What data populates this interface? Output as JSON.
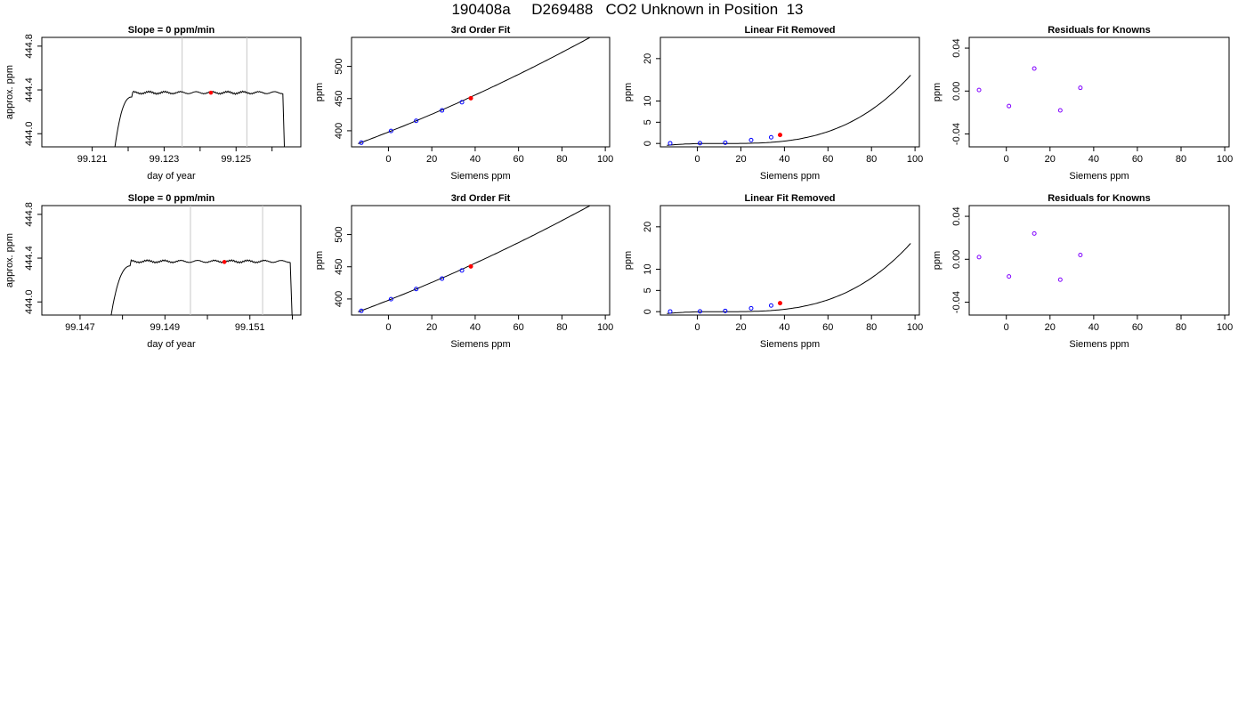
{
  "title": "190408a     D269488   CO2 Unknown in Position  13",
  "colors": {
    "line": "#000000",
    "known": "#0000ff",
    "unknown": "#ff0000",
    "residual": "#8000ff",
    "vline": "#c8c8c8"
  },
  "chart_data": [
    {
      "type": "line",
      "title": "Slope =  0  ppm/min",
      "xlabel": "day of year",
      "ylabel": "approx. ppm",
      "xlim": [
        99.1196,
        99.1268
      ],
      "ylim": [
        443.88,
        444.88
      ],
      "xticks": [
        99.121,
        99.122,
        99.123,
        99.124,
        99.125,
        99.126
      ],
      "xtick_labels": [
        "99.121",
        "",
        "99.123",
        "",
        "99.125",
        ""
      ],
      "yticks": [
        444.0,
        444.4,
        444.8
      ],
      "ytick_labels": [
        "444.0",
        "444.4",
        "444.8"
      ],
      "vlines": [
        99.1235,
        99.1253
      ],
      "trace": {
        "start": 99.1216,
        "rise_end": 99.1221,
        "plateau": 444.375,
        "fall_start": 99.1263,
        "end": 99.12635,
        "low": 443.8
      },
      "marker": {
        "x": 99.1243,
        "y": 444.375
      }
    },
    {
      "type": "scatter",
      "title": "3rd Order Fit",
      "xlabel": "Siemens ppm",
      "ylabel": "ppm",
      "xlim": [
        -17,
        102
      ],
      "ylim": [
        375,
        545
      ],
      "xticks": [
        0,
        20,
        40,
        60,
        80,
        100
      ],
      "yticks": [
        400,
        450,
        500
      ],
      "ytick_labels": [
        "400",
        "450",
        "500"
      ],
      "curve": {
        "from": -14,
        "to": 98,
        "type": "cubic",
        "coef": [
          398.0,
          1.33,
          0.0027,
          0.0
        ]
      },
      "knowns": [
        {
          "x": -12.5,
          "y": 381.5
        },
        {
          "x": 1.2,
          "y": 399.7
        },
        {
          "x": 12.8,
          "y": 415.4
        },
        {
          "x": 24.7,
          "y": 431.6
        },
        {
          "x": 33.9,
          "y": 444.3
        }
      ],
      "unknown": {
        "x": 38.0,
        "y": 450.5
      }
    },
    {
      "type": "scatter",
      "title": "Linear Fit Removed",
      "xlabel": "Siemens ppm",
      "ylabel": "ppm",
      "xlim": [
        -17,
        102
      ],
      "ylim": [
        -0.8,
        25
      ],
      "xticks": [
        0,
        20,
        40,
        60,
        80,
        100
      ],
      "yticks": [
        0,
        5,
        10,
        20
      ],
      "ytick_labels": [
        "0",
        "5",
        "10",
        "20"
      ],
      "curve": {
        "from": -14,
        "to": 98,
        "type": "cubic",
        "coef": [
          0.0,
          0.0,
          0.0,
          2.53e-05
        ],
        "shift": -12
      },
      "knowns": [
        {
          "x": -12.5,
          "y": 0.05
        },
        {
          "x": 1.2,
          "y": 0.06
        },
        {
          "x": 12.8,
          "y": 0.18
        },
        {
          "x": 24.7,
          "y": 0.8
        },
        {
          "x": 33.9,
          "y": 1.45
        }
      ],
      "unknown": {
        "x": 38.0,
        "y": 2.0
      }
    },
    {
      "type": "scatter",
      "title": "Residuals for Knowns",
      "xlabel": "Siemens ppm",
      "ylabel": "ppm",
      "xlim": [
        -17,
        102
      ],
      "ylim": [
        -0.052,
        0.05
      ],
      "xticks": [
        0,
        20,
        40,
        60,
        80,
        100
      ],
      "yticks": [
        -0.04,
        0.0,
        0.04
      ],
      "ytick_labels": [
        "-0.04",
        "0.00",
        "0.04"
      ],
      "residuals": [
        {
          "x": -12.5,
          "y": 0.001
        },
        {
          "x": 1.2,
          "y": -0.014
        },
        {
          "x": 12.8,
          "y": 0.021
        },
        {
          "x": 24.7,
          "y": -0.018
        },
        {
          "x": 33.9,
          "y": 0.003
        }
      ]
    },
    {
      "type": "line",
      "title": "Slope =  0  ppm/min",
      "xlabel": "day of year",
      "ylabel": "approx. ppm",
      "xlim": [
        99.1461,
        99.1522
      ],
      "ylim": [
        443.88,
        444.88
      ],
      "xticks": [
        99.147,
        99.148,
        99.149,
        99.15,
        99.151,
        99.152
      ],
      "xtick_labels": [
        "99.147",
        "",
        "99.149",
        "",
        "99.151",
        ""
      ],
      "yticks": [
        444.0,
        444.4,
        444.8
      ],
      "ytick_labels": [
        "444.0",
        "444.4",
        "444.8"
      ],
      "vlines": [
        99.1496,
        99.1513
      ],
      "trace": {
        "start": 99.1477,
        "rise_end": 99.1482,
        "plateau": 444.37,
        "fall_start": 99.15195,
        "end": 99.152,
        "low": 443.8
      },
      "marker": {
        "x": 99.1504,
        "y": 444.365
      }
    },
    {
      "type": "scatter",
      "title": "3rd Order Fit",
      "xlabel": "Siemens ppm",
      "ylabel": "ppm",
      "xlim": [
        -17,
        102
      ],
      "ylim": [
        375,
        545
      ],
      "xticks": [
        0,
        20,
        40,
        60,
        80,
        100
      ],
      "yticks": [
        400,
        450,
        500
      ],
      "ytick_labels": [
        "400",
        "450",
        "500"
      ],
      "curve": {
        "from": -14,
        "to": 98,
        "type": "cubic",
        "coef": [
          398.0,
          1.33,
          0.0027,
          0.0
        ]
      },
      "knowns": [
        {
          "x": -12.5,
          "y": 381.5
        },
        {
          "x": 1.2,
          "y": 399.7
        },
        {
          "x": 12.8,
          "y": 415.4
        },
        {
          "x": 24.7,
          "y": 431.6
        },
        {
          "x": 33.9,
          "y": 444.3
        }
      ],
      "unknown": {
        "x": 38.0,
        "y": 450.5
      }
    },
    {
      "type": "scatter",
      "title": "Linear Fit Removed",
      "xlabel": "Siemens ppm",
      "ylabel": "ppm",
      "xlim": [
        -17,
        102
      ],
      "ylim": [
        -0.8,
        25
      ],
      "xticks": [
        0,
        20,
        40,
        60,
        80,
        100
      ],
      "yticks": [
        0,
        5,
        10,
        20
      ],
      "ytick_labels": [
        "0",
        "5",
        "10",
        "20"
      ],
      "curve": {
        "from": -14,
        "to": 98,
        "type": "cubic",
        "coef": [
          0.0,
          0.0,
          0.0,
          2.53e-05
        ],
        "shift": -12
      },
      "knowns": [
        {
          "x": -12.5,
          "y": 0.05
        },
        {
          "x": 1.2,
          "y": 0.06
        },
        {
          "x": 12.8,
          "y": 0.18
        },
        {
          "x": 24.7,
          "y": 0.8
        },
        {
          "x": 33.9,
          "y": 1.45
        }
      ],
      "unknown": {
        "x": 38.0,
        "y": 2.0
      }
    },
    {
      "type": "scatter",
      "title": "Residuals for Knowns",
      "xlabel": "Siemens ppm",
      "ylabel": "ppm",
      "xlim": [
        -17,
        102
      ],
      "ylim": [
        -0.052,
        0.05
      ],
      "xticks": [
        0,
        20,
        40,
        60,
        80,
        100
      ],
      "yticks": [
        -0.04,
        0.0,
        0.04
      ],
      "ytick_labels": [
        "-0.04",
        "0.00",
        "0.04"
      ],
      "residuals": [
        {
          "x": -12.5,
          "y": 0.002
        },
        {
          "x": 1.2,
          "y": -0.016
        },
        {
          "x": 12.8,
          "y": 0.024
        },
        {
          "x": 24.7,
          "y": -0.019
        },
        {
          "x": 33.9,
          "y": 0.004
        }
      ]
    }
  ]
}
